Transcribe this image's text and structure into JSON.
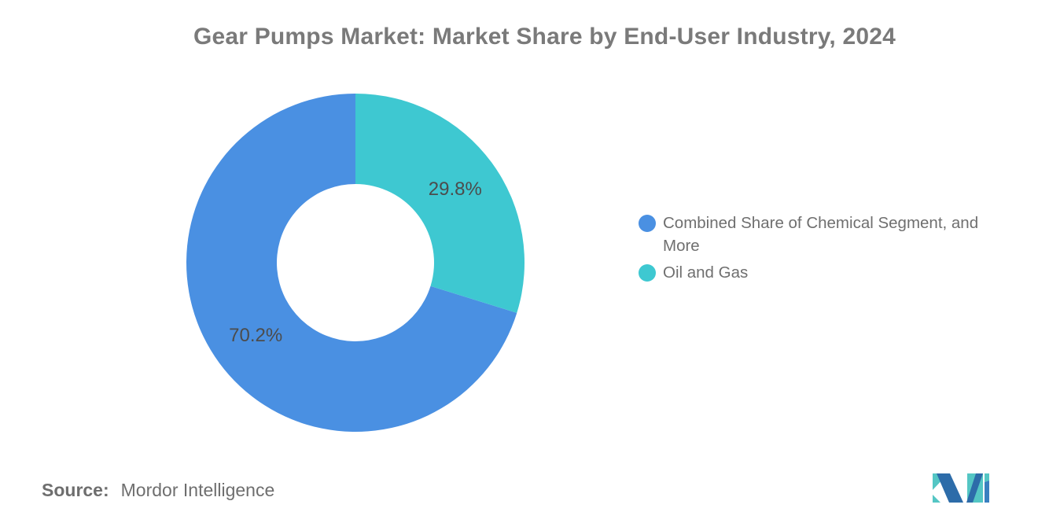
{
  "header": {
    "title": "Gear Pumps Market: Market Share by End-User Industry, 2024"
  },
  "chart_data": {
    "type": "pie",
    "subtype": "donut",
    "title": "Gear Pumps Market: Market Share by End-User Industry, 2024",
    "unit": "%",
    "series": [
      {
        "name": "Combined Share of Chemical Segment, and More",
        "value": 70.2,
        "label": "70.2%",
        "color": "#4A90E2"
      },
      {
        "name": "Oil and Gas",
        "value": 29.8,
        "label": "29.8%",
        "color": "#3EC8D1"
      }
    ],
    "start_angle": "top",
    "direction": "counterclockwise",
    "inner_radius_px": 100,
    "outer_radius_px": 215,
    "label_position": "inside",
    "label_color": "#4C4C4C",
    "legend_position": "right"
  },
  "source": {
    "prefix": "Source:",
    "text": "Mordor Intelligence"
  },
  "logo": {
    "name": "mordor-intelligence-logo",
    "teal": "#54C6C4",
    "blue_dark": "#2D6CA9",
    "blue_mid": "#3A80C0"
  }
}
